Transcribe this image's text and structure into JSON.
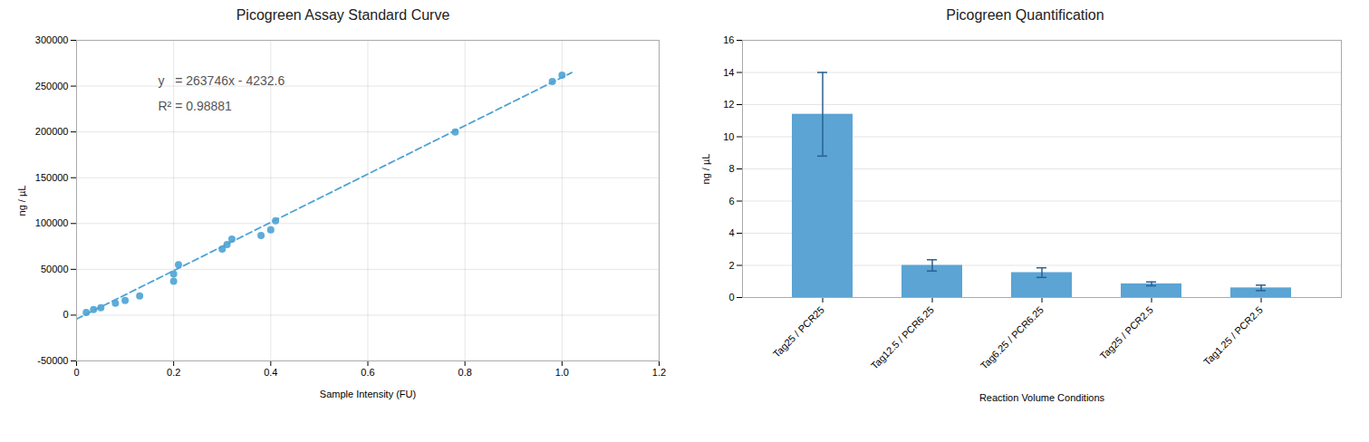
{
  "chart_data": [
    {
      "type": "scatter",
      "title": "Picogreen Assay Standard Curve",
      "xlabel": "Sample Intensity (FU)",
      "ylabel": "ng / µL",
      "series": [
        {
          "type": "scatter",
          "marker": "circle",
          "color": "#4da3d4",
          "x": [
            0.02,
            0.035,
            0.05,
            0.08,
            0.1,
            0.13,
            0.2,
            0.2,
            0.21,
            0.3,
            0.31,
            0.32,
            0.38,
            0.4,
            0.41,
            0.78,
            0.98,
            1.0
          ],
          "values": [
            3000,
            6000,
            8000,
            13000,
            16000,
            21000,
            37000,
            45000,
            55000,
            72000,
            77000,
            83000,
            87000,
            93000,
            103000,
            200000,
            255000,
            262000
          ]
        },
        {
          "type": "line",
          "line_style": "dashed",
          "color": "#4da3d4",
          "x": [
            0.0,
            1.02
          ],
          "values": [
            -4232.6,
            264788.32
          ]
        }
      ],
      "annotations": [
        "y   = 263746x - 4232.6",
        "R² = 0.98881"
      ],
      "xlim": [
        0,
        1.2
      ],
      "xticks": [
        0,
        0.2,
        0.4,
        0.6,
        0.8,
        {
          "value": 1.0,
          "label": "1.0"
        },
        1.2
      ],
      "ylim": [
        -50000,
        300000
      ],
      "yticks": [
        -50000,
        0,
        50000,
        100000,
        150000,
        200000,
        250000,
        300000
      ],
      "grid": true
    },
    {
      "type": "bar",
      "title": "Picogreen Quantification",
      "xlabel": "Reaction Volume Conditions",
      "ylabel": "ng / µL",
      "categories": [
        "Tag25 / PCR25",
        "Tag12.5 / PCR6.25",
        "Tag6.25 / PCR6.25",
        "Tag25 / PCR2.5",
        "Tag1.25 / PCR2.5"
      ],
      "values": [
        11.4,
        2.0,
        1.55,
        0.85,
        0.6
      ],
      "errors": [
        2.6,
        0.35,
        0.3,
        0.12,
        0.17
      ],
      "color": "#5ba4d4",
      "error_color": "#2a6090",
      "ylim": [
        0,
        16
      ],
      "yticks": [
        0,
        2,
        4,
        6,
        8,
        10,
        12,
        14,
        16
      ],
      "grid": "y"
    }
  ]
}
